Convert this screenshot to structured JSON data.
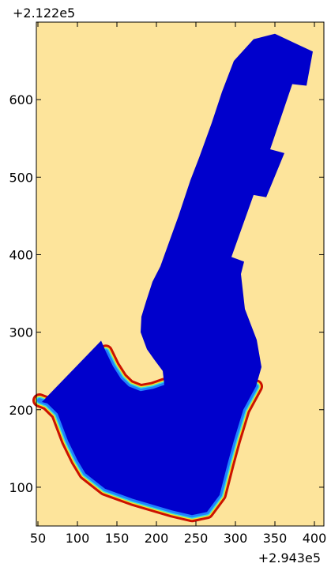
{
  "chart_data": {
    "type": "heatmap",
    "title": "",
    "xlabel": "",
    "ylabel": "",
    "x_offset_label": "+2.943e5",
    "y_offset_label": "+2.122e5",
    "xlim": [
      48,
      412
    ],
    "ylim": [
      50,
      700
    ],
    "x_ticks": [
      50,
      100,
      150,
      200,
      250,
      300,
      350,
      400
    ],
    "y_ticks": [
      100,
      200,
      300,
      400,
      500,
      600
    ],
    "colors": {
      "background": "#fde49b",
      "water": "#0000cc",
      "edge_red": "#cc1100",
      "edge_yellow": "#f0e030",
      "edge_cyan": "#30e0e0",
      "edge_light_blue": "#2080ff"
    },
    "region_outline": [
      [
        55,
        210
      ],
      [
        130,
        289
      ],
      [
        136,
        275
      ],
      [
        145,
        256
      ],
      [
        155,
        240
      ],
      [
        165,
        230
      ],
      [
        180,
        224
      ],
      [
        196,
        227
      ],
      [
        210,
        232
      ],
      [
        208,
        250
      ],
      [
        197,
        265
      ],
      [
        188,
        278
      ],
      [
        180,
        300
      ],
      [
        181,
        320
      ],
      [
        187,
        340
      ],
      [
        195,
        365
      ],
      [
        205,
        385
      ],
      [
        211,
        402
      ],
      [
        228,
        450
      ],
      [
        243,
        496
      ],
      [
        254,
        525
      ],
      [
        270,
        570
      ],
      [
        283,
        610
      ],
      [
        298,
        650
      ],
      [
        323,
        678
      ],
      [
        350,
        685
      ],
      [
        398,
        662
      ],
      [
        390,
        618
      ],
      [
        372,
        620
      ],
      [
        368,
        608
      ],
      [
        344,
        536
      ],
      [
        362,
        531
      ],
      [
        339,
        474
      ],
      [
        323,
        477
      ],
      [
        295,
        397
      ],
      [
        311,
        391
      ],
      [
        307,
        375
      ],
      [
        312,
        330
      ],
      [
        327,
        290
      ],
      [
        333,
        255
      ],
      [
        326,
        230
      ],
      [
        310,
        200
      ],
      [
        298,
        160
      ],
      [
        290,
        130
      ],
      [
        280,
        90
      ],
      [
        264,
        68
      ],
      [
        245,
        64
      ],
      [
        220,
        70
      ],
      [
        200,
        76
      ],
      [
        170,
        85
      ],
      [
        135,
        98
      ],
      [
        110,
        118
      ],
      [
        100,
        135
      ],
      [
        88,
        160
      ],
      [
        75,
        195
      ],
      [
        62,
        208
      ]
    ],
    "shoreline_bands": [
      {
        "name": "",
        "points": [
          [
            52,
            212
          ],
          [
            62,
            208
          ],
          [
            75,
            195
          ],
          [
            88,
            160
          ],
          [
            100,
            135
          ],
          [
            110,
            118
          ],
          [
            135,
            98
          ],
          [
            170,
            85
          ],
          [
            200,
            76
          ],
          [
            220,
            70
          ],
          [
            245,
            64
          ],
          [
            264,
            68
          ],
          [
            280,
            90
          ],
          [
            290,
            130
          ],
          [
            298,
            160
          ],
          [
            310,
            200
          ],
          [
            326,
            230
          ]
        ]
      },
      {
        "name": "",
        "points": [
          [
            136,
            275
          ],
          [
            145,
            256
          ],
          [
            155,
            240
          ],
          [
            165,
            230
          ],
          [
            180,
            224
          ],
          [
            196,
            227
          ],
          [
            210,
            232
          ]
        ]
      }
    ]
  }
}
